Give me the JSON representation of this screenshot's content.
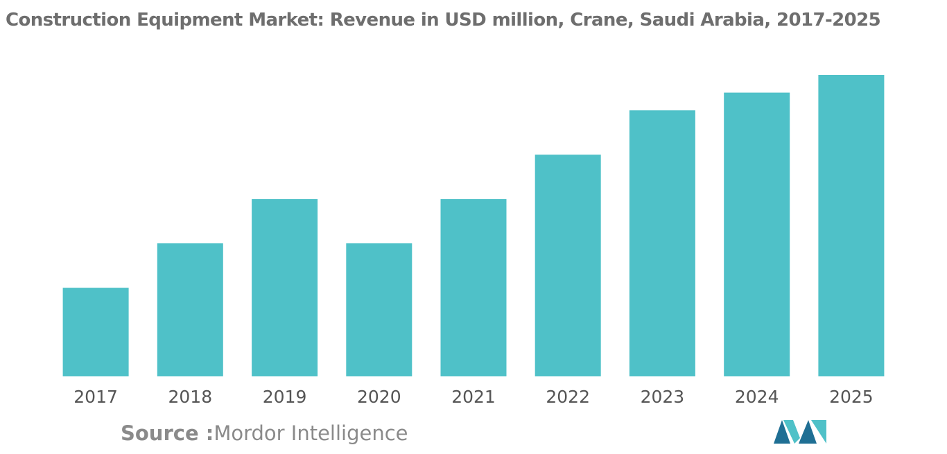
{
  "title": "Construction Equipment Market: Revenue in USD million, Crane, Saudi Arabia, 2017-2025",
  "source": {
    "label": "Source :",
    "value": "Mordor Intelligence"
  },
  "colors": {
    "bar": "#4fc1c8",
    "logo_dark": "#1f6f94",
    "logo_light": "#4fc1c8"
  },
  "chart_data": {
    "type": "bar",
    "title": "Construction Equipment Market: Revenue in USD million, Crane, Saudi Arabia, 2017-2025",
    "xlabel": "",
    "ylabel": "",
    "categories": [
      "2017",
      "2018",
      "2019",
      "2020",
      "2021",
      "2022",
      "2023",
      "2024",
      "2025"
    ],
    "values": [
      2.0,
      3.0,
      4.0,
      3.0,
      4.0,
      5.0,
      6.0,
      6.4,
      6.8
    ],
    "ylim": [
      0,
      6.8
    ],
    "grid": false,
    "legend": "none",
    "y_axis_shown": false
  }
}
